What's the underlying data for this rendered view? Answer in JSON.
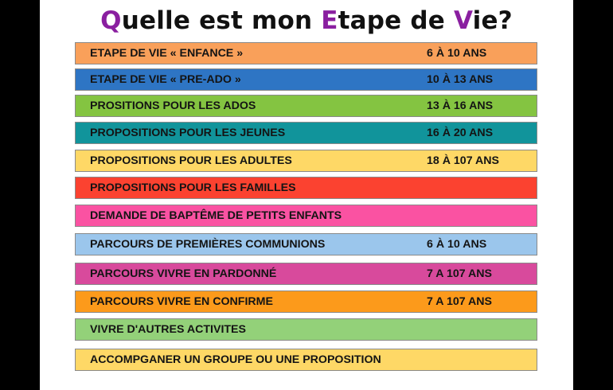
{
  "title": {
    "parts": [
      "Q",
      "uelle est mon ",
      "E",
      "tape de ",
      "V",
      "ie?"
    ]
  },
  "colors": {
    "highlight": "#8a1fa0",
    "background": "#000000",
    "slide": "#ffffff"
  },
  "rows": [
    {
      "label": "ETAPE DE VIE « ENFANCE »",
      "age": "6 À 10 ANS",
      "color": "#f9a05a"
    },
    {
      "label": "ETAPE DE VIE  « PRE-ADO »",
      "age": "10 À 13 ANS",
      "color": "#2e75c4"
    },
    {
      "label": "PROSITIONS POUR LES ADOS",
      "age": "13 À 16 ANS",
      "color": "#84c441"
    },
    {
      "label": "PROPOSITIONS POUR LES JEUNES",
      "age": "16 À 20 ANS",
      "color": "#11949b"
    },
    {
      "label": "PROPOSITIONS  POUR LES ADULTES",
      "age": "18 À 107 ANS",
      "color": "#fed866"
    },
    {
      "label": "PROPOSITIONS  POUR LES FAMILLES",
      "age": "",
      "color": "#fb4230"
    },
    {
      "label": "DEMANDE DE BAPTÊME DE PETITS ENFANTS",
      "age": "",
      "color": "#fa52a2"
    },
    {
      "label": "PARCOURS DE PREMIÈRES COMMUNIONS",
      "age": "6 À 10 ANS",
      "color": "#9bc6ec"
    },
    {
      "label": "PARCOURS VIVRE EN PARDONNÉ",
      "age": "7 A 107 ANS",
      "color": "#d84a9c"
    },
    {
      "label": "PARCOURS VIVRE EN CONFIRME",
      "age": "7 A 107 ANS",
      "color": "#fc9a1b"
    },
    {
      "label": "VIVRE D'AUTRES ACTIVITES",
      "age": "",
      "color": "#93d179"
    },
    {
      "label": "ACCOMPGANER UN GROUPE OU UNE PROPOSITION",
      "age": "",
      "color": "#fed866"
    }
  ]
}
